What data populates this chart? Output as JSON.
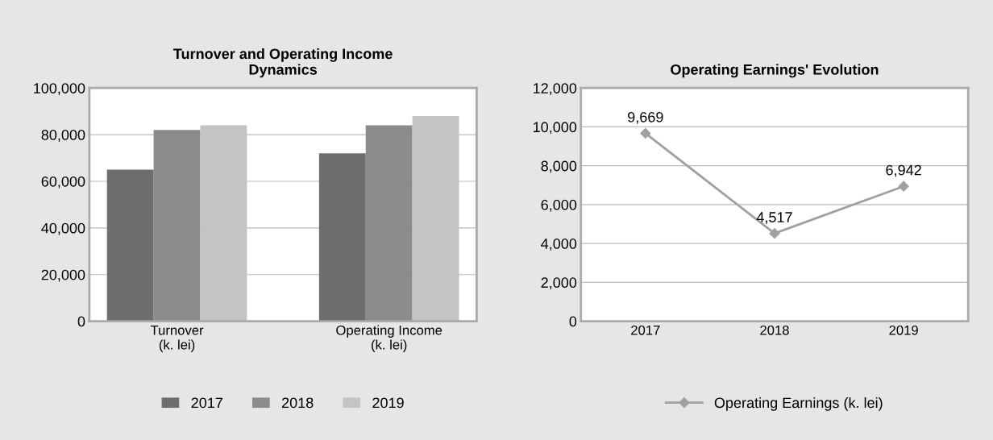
{
  "chart_data": [
    {
      "type": "bar",
      "title": "Turnover and Operating Income\nDynamics",
      "categories": [
        "Turnover\n(k. lei)",
        "Operating Income\n(k. lei)"
      ],
      "series": [
        {
          "name": "2017",
          "color": "#6e6e6e",
          "values": [
            65000,
            72000
          ]
        },
        {
          "name": "2018",
          "color": "#8c8c8c",
          "values": [
            82000,
            84000
          ]
        },
        {
          "name": "2019",
          "color": "#c4c4c4",
          "values": [
            84000,
            88000
          ]
        }
      ],
      "ylim": [
        0,
        100000
      ],
      "yticks": [
        {
          "value": 0,
          "label": "0"
        },
        {
          "value": 20000,
          "label": "20,000"
        },
        {
          "value": 40000,
          "label": "40,000"
        },
        {
          "value": 60000,
          "label": "60,000"
        },
        {
          "value": 80000,
          "label": "80,000"
        },
        {
          "value": 100000,
          "label": "100,000"
        }
      ],
      "grid": "y",
      "legend": "bottom"
    },
    {
      "type": "line",
      "title": "Operating Earnings' Evolution",
      "categories": [
        "2017",
        "2018",
        "2019"
      ],
      "series": [
        {
          "name": "Operating Earnings (k. lei)",
          "color": "#a0a0a0",
          "values": [
            9669,
            4517,
            6942
          ]
        }
      ],
      "value_labels": [
        "9,669",
        "4,517",
        "6,942"
      ],
      "ylim": [
        0,
        12000
      ],
      "yticks": [
        {
          "value": 0,
          "label": "0"
        },
        {
          "value": 2000,
          "label": "2,000"
        },
        {
          "value": 4000,
          "label": "4,000"
        },
        {
          "value": 6000,
          "label": "6,000"
        },
        {
          "value": 8000,
          "label": "8,000"
        },
        {
          "value": 10000,
          "label": "10,000"
        },
        {
          "value": 12000,
          "label": "12,000"
        }
      ],
      "grid": "y",
      "legend": "bottom",
      "marker": "diamond"
    }
  ]
}
